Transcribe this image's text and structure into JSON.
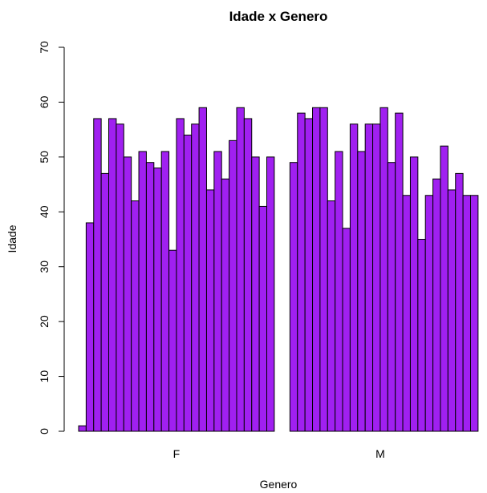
{
  "chart_data": {
    "type": "bar",
    "title": "Idade x Genero",
    "xlabel": "Genero",
    "ylabel": "Idade",
    "ylim": [
      0,
      70
    ],
    "yticks": [
      0,
      10,
      20,
      30,
      40,
      50,
      60,
      70
    ],
    "bar_color": "#a020f0",
    "bar_border": "#000000",
    "grid": false,
    "groups": [
      {
        "name": "F",
        "values": [
          1,
          38,
          57,
          47,
          57,
          56,
          50,
          42,
          51,
          49,
          48,
          51,
          33,
          57,
          54,
          56,
          59,
          44,
          51,
          46,
          53,
          59,
          57,
          50,
          41,
          50
        ]
      },
      {
        "name": "M",
        "values": [
          0,
          49,
          58,
          57,
          59,
          59,
          42,
          51,
          37,
          56,
          51,
          56,
          56,
          59,
          49,
          58,
          43,
          50,
          35,
          43,
          46,
          52,
          44,
          47,
          43,
          43
        ]
      }
    ]
  }
}
